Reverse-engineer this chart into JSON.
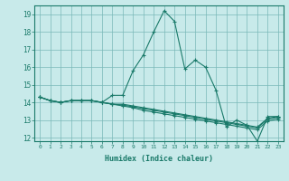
{
  "xlabel": "Humidex (Indice chaleur)",
  "ylabel": "",
  "bg_color": "#c8eaea",
  "grid_color": "#7ab8b8",
  "line_color": "#1a7a6a",
  "xlim": [
    -0.5,
    23.5
  ],
  "ylim": [
    11.8,
    19.5
  ],
  "yticks": [
    12,
    13,
    14,
    15,
    16,
    17,
    18,
    19
  ],
  "xticks": [
    0,
    1,
    2,
    3,
    4,
    5,
    6,
    7,
    8,
    9,
    10,
    11,
    12,
    13,
    14,
    15,
    16,
    17,
    18,
    19,
    20,
    21,
    22,
    23
  ],
  "series": [
    [
      14.3,
      14.1,
      14.0,
      14.1,
      14.1,
      14.1,
      14.0,
      14.4,
      14.4,
      15.8,
      16.7,
      18.0,
      19.2,
      18.6,
      15.9,
      16.4,
      16.0,
      14.7,
      12.6,
      13.0,
      12.7,
      11.8,
      13.2,
      13.2
    ],
    [
      14.3,
      14.1,
      14.0,
      14.1,
      14.1,
      14.1,
      14.0,
      13.9,
      13.9,
      13.8,
      13.7,
      13.6,
      13.5,
      13.4,
      13.3,
      13.2,
      13.1,
      13.0,
      12.9,
      12.8,
      12.7,
      12.6,
      13.1,
      13.2
    ],
    [
      14.3,
      14.1,
      14.0,
      14.1,
      14.1,
      14.1,
      14.0,
      13.9,
      13.85,
      13.75,
      13.65,
      13.55,
      13.45,
      13.35,
      13.25,
      13.15,
      13.05,
      12.95,
      12.85,
      12.75,
      12.65,
      12.55,
      13.05,
      13.15
    ],
    [
      14.3,
      14.1,
      14.0,
      14.1,
      14.1,
      14.1,
      14.0,
      13.9,
      13.8,
      13.7,
      13.55,
      13.45,
      13.35,
      13.25,
      13.15,
      13.05,
      12.95,
      12.85,
      12.75,
      12.65,
      12.55,
      12.45,
      12.95,
      13.05
    ]
  ]
}
